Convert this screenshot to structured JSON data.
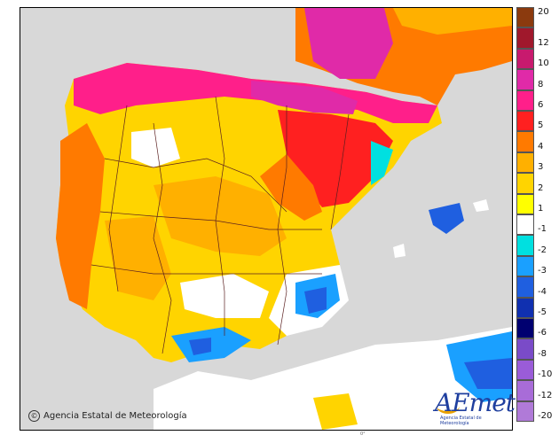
{
  "credit": {
    "text": "Agencia Estatal de Meteorología",
    "symbol": "©"
  },
  "logo": {
    "word": "AEmet",
    "subtitle": "Agencia Estatal de Meteorología"
  },
  "lon_tick": "0°",
  "legend": {
    "labels": [
      "20",
      "12",
      "10",
      "8",
      "6",
      "5",
      "4",
      "3",
      "2",
      "1",
      "-1",
      "-2",
      "-3",
      "-4",
      "-5",
      "-6",
      "-8",
      "-10",
      "-12",
      "-20"
    ],
    "colors": [
      "#8b3a0e",
      "#a0182c",
      "#c81a6e",
      "#e02aa8",
      "#ff1f8a",
      "#ff2020",
      "#ff7a00",
      "#ffb000",
      "#ffd400",
      "#ffff00",
      "#ffffff",
      "#00e0e0",
      "#1aa0ff",
      "#1f5fe0",
      "#1030b0",
      "#000070",
      "#7a4bc8",
      "#9a5cd8",
      "#a86cd8",
      "#b07ad8"
    ]
  },
  "colors": {
    "land_neutral": "#ffffff",
    "sea": "#d8d8d8",
    "africa": "#d8d8d8"
  }
}
